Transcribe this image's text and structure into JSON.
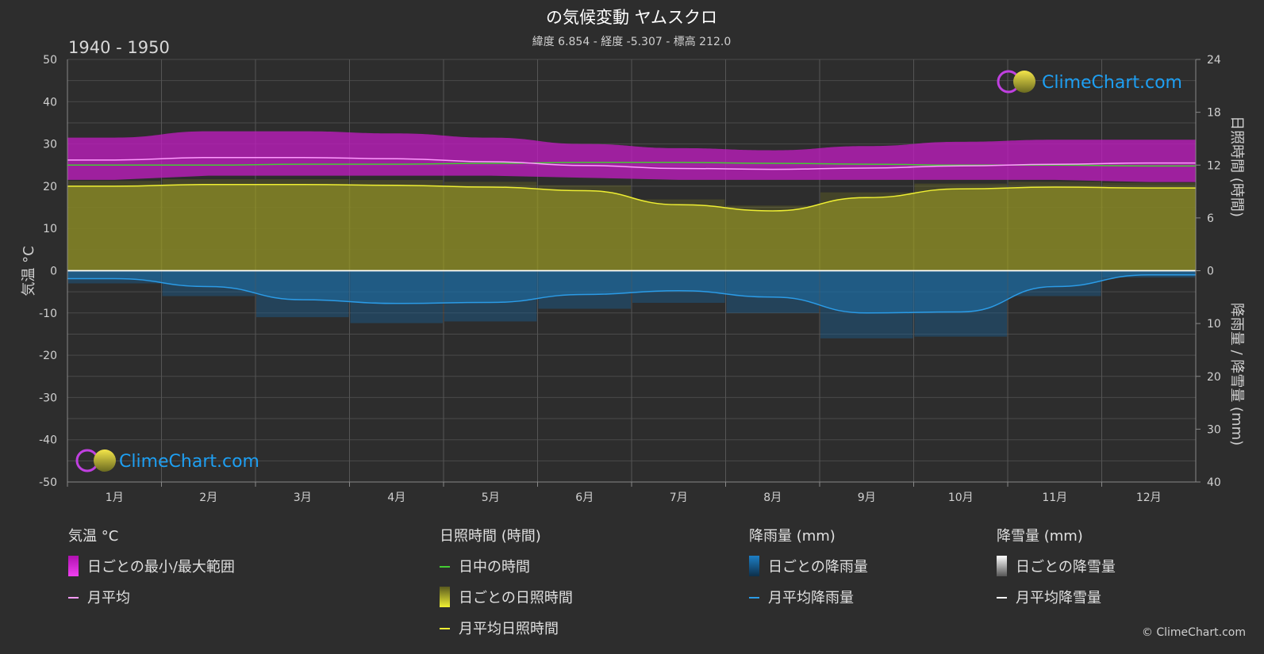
{
  "header": {
    "title": "の気候変動 ヤムスクロ",
    "subtitle": "緯度 6.854 - 経度 -5.307 - 標高 212.0",
    "period": "1940 - 1950"
  },
  "axes": {
    "left_label": "気温 °C",
    "right_top_label": "日照時間 (時間)",
    "right_bottom_label": "降雨量 / 降雪量 (mm)",
    "left_ticks": [
      "50",
      "40",
      "30",
      "20",
      "10",
      "0",
      "-10",
      "-20",
      "-30",
      "-40",
      "-50"
    ],
    "right_top_ticks": [
      "24",
      "18",
      "12",
      "6",
      "0"
    ],
    "right_bottom_ticks": [
      "10",
      "20",
      "30",
      "40"
    ]
  },
  "legend": {
    "temp_head": "気温 °C",
    "temp_range": "日ごとの最小/最大範囲",
    "temp_avg": "月平均",
    "sun_head": "日照時間 (時間)",
    "sun_daylight": "日中の時間",
    "sun_daily": "日ごとの日照時間",
    "sun_avg": "月平均日照時間",
    "rain_head": "降雨量 (mm)",
    "rain_daily": "日ごとの降雨量",
    "rain_avg": "月平均降雨量",
    "snow_head": "降雪量 (mm)",
    "snow_daily": "日ごとの降雪量",
    "snow_avg": "月平均降雪量"
  },
  "logo": {
    "text": "ClimeChart.com"
  },
  "copyright": "© ClimeChart.com",
  "colors": {
    "temp_range": "#d21ad2",
    "temp_avg": "#ff9bff",
    "daylight": "#44cc33",
    "sunshine_fill": "#9a9a2a",
    "sunshine_avg": "#eeee33",
    "rain": "#1d6fa8",
    "rain_avg": "#2b9be6",
    "snow_avg": "#ffffff",
    "accent": "#1e9ff2"
  },
  "chart_data": {
    "type": "area",
    "categories": [
      "1月",
      "2月",
      "3月",
      "4月",
      "5月",
      "6月",
      "7月",
      "8月",
      "9月",
      "10月",
      "11月",
      "12月"
    ],
    "temp_ylim": [
      -50,
      50
    ],
    "sunshine_ylim": [
      0,
      24
    ],
    "precip_ylim": [
      0,
      40
    ],
    "series": [
      {
        "name": "日ごとの最小/最大範囲",
        "min": [
          21.5,
          22.5,
          22.5,
          22.5,
          22.5,
          22,
          21.5,
          21.5,
          21.5,
          21.5,
          21.5,
          21
        ],
        "max": [
          31.5,
          33,
          33,
          32.5,
          31.5,
          30,
          29,
          28.5,
          29.5,
          30.5,
          31,
          31
        ]
      },
      {
        "name": "月平均",
        "values": [
          26.2,
          26.8,
          26.8,
          26.5,
          25.8,
          24.9,
          24.2,
          24.0,
          24.3,
          24.8,
          25.2,
          25.5
        ]
      },
      {
        "name": "日中の時間",
        "values": [
          12.0,
          12.0,
          12.1,
          12.1,
          12.2,
          12.3,
          12.3,
          12.2,
          12.1,
          12.0,
          12.0,
          11.9
        ]
      },
      {
        "name": "月平均日照時間",
        "values": [
          9.6,
          9.8,
          9.8,
          9.7,
          9.5,
          9.1,
          7.5,
          6.8,
          8.3,
          9.3,
          9.5,
          9.4
        ]
      },
      {
        "name": "月平均降雨量",
        "values": [
          1.5,
          3.0,
          5.5,
          6.2,
          6.0,
          4.5,
          3.8,
          5.0,
          8.0,
          7.8,
          3.0,
          0.8
        ]
      },
      {
        "name": "月平均降雪量",
        "values": [
          0,
          0,
          0,
          0,
          0,
          0,
          0,
          0,
          0,
          0,
          0,
          0
        ]
      }
    ]
  }
}
